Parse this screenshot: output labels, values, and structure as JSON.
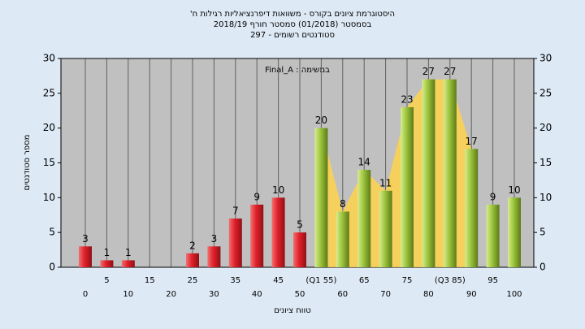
{
  "chart_data": {
    "type": "bar",
    "title": [
      "היסטוגרמת ציונים בקורס - משוואות דיפרנציאליות רגילות ח'",
      "בסמסטר (01/2018) סמסטר חורף 2018/19",
      "סטודנטים רשומים - 297"
    ],
    "annotation": "במשימה : Final_A",
    "x_label": "טווח ציונים",
    "y_label": "מספר סטודנטים",
    "categories": [
      "0",
      "5",
      "10",
      "15",
      "20",
      "25",
      "30",
      "35",
      "40",
      "45",
      "50",
      "(Q1 55)",
      "60",
      "65",
      "70",
      "75",
      "80",
      "(Q3 85)",
      "90",
      "95",
      "100"
    ],
    "series": [
      {
        "values": [
          3,
          1,
          1,
          0,
          0,
          2,
          3,
          7,
          9,
          10,
          5,
          20,
          8,
          14,
          11,
          23,
          27,
          27,
          17,
          9,
          10
        ],
        "colors": [
          "#e0202a",
          "#e0202a",
          "#e0202a",
          "#e0202a",
          "#e0202a",
          "#e0202a",
          "#e0202a",
          "#e0202a",
          "#e0202a",
          "#e0202a",
          "#e0202a",
          "#9cc43c",
          "#9cc43c",
          "#9cc43c",
          "#9cc43c",
          "#9cc43c",
          "#9cc43c",
          "#9cc43c",
          "#9cc43c",
          "#9cc43c",
          "#9cc43c"
        ]
      }
    ],
    "ylim": [
      0,
      30
    ],
    "yticks": [
      0,
      5,
      10,
      15,
      20,
      25,
      30
    ],
    "y2lim": [
      0,
      30
    ],
    "y2ticks": [
      0,
      5,
      10,
      15,
      20,
      25,
      30
    ],
    "grid": true
  }
}
